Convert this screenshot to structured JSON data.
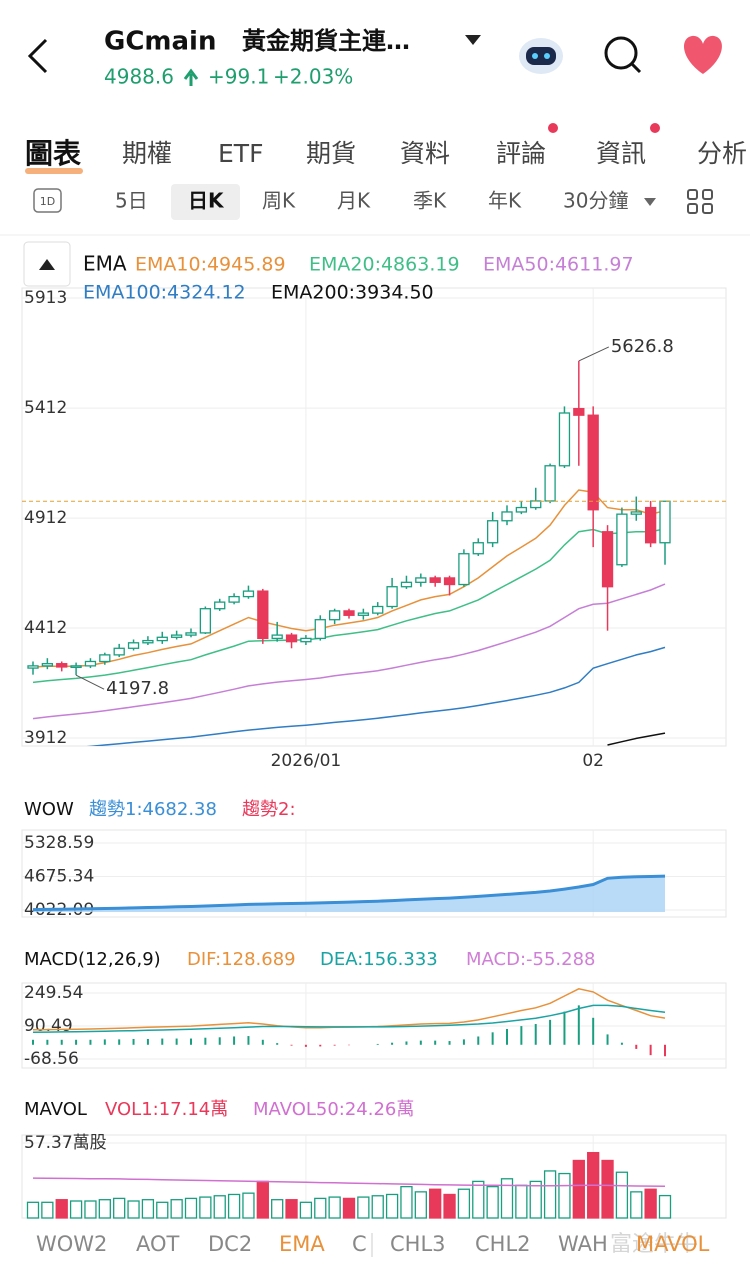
{
  "header": {
    "symbol": "GCmain",
    "name": "黃金期貨主連…",
    "price": "4988.6",
    "change": "+99.1",
    "percent": "+2.03%"
  },
  "tabs": [
    "圖表",
    "期權",
    "ETF",
    "期貨",
    "資料",
    "評論",
    "資訊",
    "分析"
  ],
  "periods": {
    "icon": "1D",
    "items": [
      "5日",
      "日K",
      "周K",
      "月K",
      "季K",
      "年K",
      "30分鐘"
    ],
    "selected": "日K"
  },
  "main": {
    "indicator": "EMA",
    "ylim": [
      3912,
      5913
    ],
    "yticks": [
      5913,
      5412,
      4912,
      4412,
      3912
    ],
    "up_color": "#1a9e80",
    "down_color": "#e8395a",
    "price_line_color": "#e0a030",
    "dates": [
      null,
      null,
      null,
      null,
      null,
      null,
      null,
      null,
      null,
      null,
      null,
      null,
      null,
      null,
      null,
      null,
      null,
      null,
      null,
      "2026/01",
      null,
      null,
      null,
      null,
      null,
      null,
      null,
      null,
      null,
      null,
      null,
      null,
      null,
      null,
      null,
      null,
      null,
      null,
      null,
      "02",
      null,
      null,
      null,
      null,
      null
    ],
    "open": [
      4230,
      4240,
      4250,
      4235,
      4240,
      4260,
      4290,
      4320,
      4345,
      4355,
      4370,
      4380,
      4390,
      4500,
      4530,
      4555,
      4580,
      4365,
      4380,
      4350,
      4365,
      4450,
      4490,
      4470,
      4480,
      4510,
      4600,
      4620,
      4640,
      4640,
      4610,
      4750,
      4800,
      4900,
      4940,
      4960,
      4990,
      5150,
      5410,
      5380,
      4850,
      4700,
      4930,
      4960,
      4800
    ],
    "high": [
      4260,
      4275,
      4260,
      4255,
      4275,
      4300,
      4340,
      4360,
      4375,
      4395,
      4400,
      4410,
      4510,
      4545,
      4570,
      4605,
      4590,
      4440,
      4390,
      4380,
      4470,
      4500,
      4500,
      4500,
      4530,
      4640,
      4650,
      4660,
      4650,
      4650,
      4770,
      4820,
      4940,
      4970,
      4990,
      5050,
      5160,
      5420,
      5626.8,
      5420,
      4880,
      4960,
      5010,
      4990,
      4990
    ],
    "low": [
      4200,
      4225,
      4215,
      4197.8,
      4230,
      4245,
      4280,
      4310,
      4335,
      4340,
      4360,
      4370,
      4385,
      4490,
      4520,
      4545,
      4340,
      4350,
      4320,
      4335,
      4355,
      4430,
      4455,
      4450,
      4470,
      4500,
      4590,
      4600,
      4600,
      4560,
      4600,
      4740,
      4780,
      4880,
      4930,
      4950,
      4980,
      5140,
      5150,
      4780,
      4400,
      4690,
      4900,
      4780,
      4700
    ],
    "close": [
      4240,
      4250,
      4235,
      4240,
      4260,
      4290,
      4320,
      4345,
      4355,
      4370,
      4380,
      4390,
      4500,
      4530,
      4555,
      4580,
      4365,
      4380,
      4350,
      4365,
      4450,
      4490,
      4470,
      4480,
      4510,
      4600,
      4620,
      4640,
      4620,
      4610,
      4750,
      4800,
      4900,
      4940,
      4960,
      4990,
      5150,
      5390,
      5380,
      4950,
      4600,
      4930,
      4940,
      4800,
      4988.6
    ],
    "lines": [
      {
        "name": "EMA10:4945.89",
        "color": "#e8913a",
        "values": [
          4235,
          4238,
          4238,
          4238,
          4243,
          4255,
          4270,
          4287,
          4300,
          4315,
          4328,
          4340,
          4370,
          4400,
          4430,
          4460,
          4440,
          4425,
          4410,
          4400,
          4410,
          4425,
          4435,
          4445,
          4460,
          4490,
          4515,
          4540,
          4555,
          4565,
          4600,
          4640,
          4690,
          4740,
          4780,
          4820,
          4880,
          4970,
          5040,
          5030,
          4960,
          4950,
          4950,
          4930,
          4945.89
        ]
      },
      {
        "name": "EMA20:4863.19",
        "color": "#3fbf87",
        "values": [
          4165,
          4172,
          4178,
          4183,
          4190,
          4198,
          4208,
          4220,
          4232,
          4245,
          4257,
          4268,
          4290,
          4310,
          4330,
          4352,
          4354,
          4356,
          4357,
          4358,
          4366,
          4378,
          4386,
          4395,
          4405,
          4425,
          4445,
          4462,
          4478,
          4490,
          4515,
          4540,
          4575,
          4610,
          4645,
          4680,
          4720,
          4790,
          4850,
          4860,
          4840,
          4845,
          4850,
          4850,
          4863.19
        ]
      },
      {
        "name": "EMA50:4611.97",
        "color": "#c67fd6",
        "values": [
          4000,
          4008,
          4015,
          4021,
          4028,
          4036,
          4045,
          4054,
          4063,
          4072,
          4082,
          4092,
          4106,
          4120,
          4134,
          4149,
          4158,
          4166,
          4172,
          4178,
          4185,
          4195,
          4203,
          4210,
          4218,
          4230,
          4243,
          4256,
          4268,
          4278,
          4293,
          4310,
          4330,
          4350,
          4372,
          4393,
          4420,
          4460,
          4500,
          4520,
          4525,
          4545,
          4565,
          4585,
          4611.97
        ]
      },
      {
        "name": "EMA100:4324.12",
        "color": "#2f7dc4",
        "values": [
          3850,
          3856,
          3862,
          3868,
          3874,
          3880,
          3886,
          3892,
          3898,
          3904,
          3910,
          3916,
          3924,
          3932,
          3940,
          3948,
          3954,
          3960,
          3965,
          3970,
          3976,
          3983,
          3989,
          3995,
          4002,
          4010,
          4018,
          4026,
          4034,
          4041,
          4050,
          4060,
          4071,
          4082,
          4094,
          4106,
          4120,
          4140,
          4165,
          4230,
          4250,
          4270,
          4290,
          4305,
          4324.12
        ]
      },
      {
        "name": "EMA200:3934.50",
        "color": "#111111",
        "values": [
          null,
          null,
          null,
          null,
          null,
          null,
          null,
          null,
          null,
          null,
          null,
          null,
          null,
          null,
          null,
          null,
          null,
          null,
          null,
          null,
          null,
          null,
          null,
          null,
          null,
          null,
          null,
          null,
          null,
          null,
          null,
          null,
          null,
          null,
          null,
          null,
          null,
          null,
          null,
          null,
          3880,
          3895,
          3910,
          3922,
          3934.5
        ]
      }
    ]
  },
  "wow": {
    "title": "WOW",
    "ylim": [
      4022.09,
      5328.59
    ],
    "yticks": [
      5328.59,
      4675.34,
      4022.09
    ],
    "fill": "#a9d2f5",
    "series": [
      {
        "name": "趨勢1:4682.38",
        "color": "#3a8fd6",
        "values": [
          4030,
          4034,
          4038,
          4042,
          4047,
          4052,
          4058,
          4064,
          4070,
          4077,
          4084,
          4091,
          4100,
          4110,
          4120,
          4131,
          4138,
          4144,
          4149,
          4153,
          4160,
          4169,
          4177,
          4185,
          4194,
          4206,
          4219,
          4232,
          4244,
          4255,
          4270,
          4287,
          4306,
          4326,
          4346,
          4366,
          4392,
          4430,
          4470,
          4520,
          4640,
          4660,
          4670,
          4675,
          4682.38
        ]
      },
      {
        "name": "趨勢2:",
        "color": "#e8395a"
      }
    ]
  },
  "macd": {
    "title": "MACD(12,26,9)",
    "ylim": [
      -68.56,
      249.54
    ],
    "yticks": [
      249.54,
      90.49,
      -68.56
    ],
    "up_color": "#1a9e80",
    "down_color": "#e8395a",
    "series": [
      {
        "name": "DIF:128.689",
        "color": "#e8913a",
        "values": [
          72,
          73,
          74,
          75,
          76,
          78,
          80,
          82,
          84,
          86,
          88,
          90,
          94,
          98,
          102,
          106,
          100,
          92,
          86,
          82,
          82,
          84,
          85,
          86,
          88,
          92,
          96,
          100,
          102,
          103,
          110,
          120,
          135,
          150,
          165,
          178,
          200,
          235,
          270,
          255,
          215,
          190,
          165,
          140,
          128.689
        ]
      },
      {
        "name": "DEA:156.333",
        "color": "#1aa3a3",
        "values": [
          60,
          61,
          62,
          63,
          64,
          65,
          67,
          68,
          70,
          71,
          73,
          75,
          77,
          80,
          82,
          85,
          88,
          88,
          88,
          87,
          86,
          86,
          86,
          86,
          86,
          87,
          88,
          90,
          92,
          94,
          97,
          100,
          105,
          112,
          120,
          128,
          140,
          155,
          175,
          190,
          190,
          185,
          175,
          165,
          156.333
        ]
      },
      {
        "name": "MACD:-55.288",
        "color": "#d07fd6",
        "values": [
          24,
          24,
          24,
          24,
          24,
          26,
          26,
          28,
          28,
          30,
          30,
          30,
          34,
          36,
          40,
          42,
          24,
          8,
          -4,
          -10,
          -8,
          -4,
          -2,
          0,
          4,
          10,
          16,
          20,
          20,
          18,
          26,
          40,
          60,
          76,
          90,
          100,
          120,
          160,
          190,
          130,
          50,
          10,
          -20,
          -50,
          -55.288
        ]
      }
    ]
  },
  "mavol": {
    "title": "MAVOL",
    "ylim": [
      0,
      57.37
    ],
    "yticks": [
      {
        "value": 57.37,
        "label": "57.37萬股"
      }
    ],
    "series": [
      {
        "name": "VOL1:17.14萬",
        "color": "#e8395a",
        "values": [
          12,
          12,
          14,
          13,
          13,
          14,
          15,
          13,
          14,
          12,
          14,
          15,
          16,
          17,
          18,
          19,
          28,
          14,
          14,
          12,
          15,
          16,
          15,
          16,
          17,
          18,
          24,
          20,
          22,
          18,
          22,
          28,
          24,
          30,
          25,
          28,
          36,
          34,
          44,
          50,
          44,
          35,
          20,
          22,
          17.14
        ]
      },
      {
        "name": "MAVOL50:24.26萬",
        "color": "#d070d0",
        "values": [
          30.5,
          30.4,
          30.3,
          30.2,
          30.1,
          30,
          29.9,
          29.7,
          29.5,
          29.3,
          29.1,
          28.9,
          28.7,
          28.5,
          28.3,
          28.1,
          27.9,
          27.7,
          27.5,
          27.3,
          27.1,
          26.9,
          26.7,
          26.5,
          26.3,
          26.1,
          25.9,
          25.7,
          25.5,
          25.3,
          25.2,
          25.1,
          25,
          24.9,
          24.8,
          24.7,
          24.7,
          24.8,
          24.9,
          25,
          24.9,
          24.7,
          24.5,
          24.4,
          24.26
        ]
      }
    ]
  },
  "bottom_tabs": [
    "WOW2",
    "AOT",
    "DC2",
    "EMA",
    "C",
    "CHL3",
    "CHL2",
    "WAH",
    "MAVOL"
  ],
  "watermark": "富途牛牛"
}
